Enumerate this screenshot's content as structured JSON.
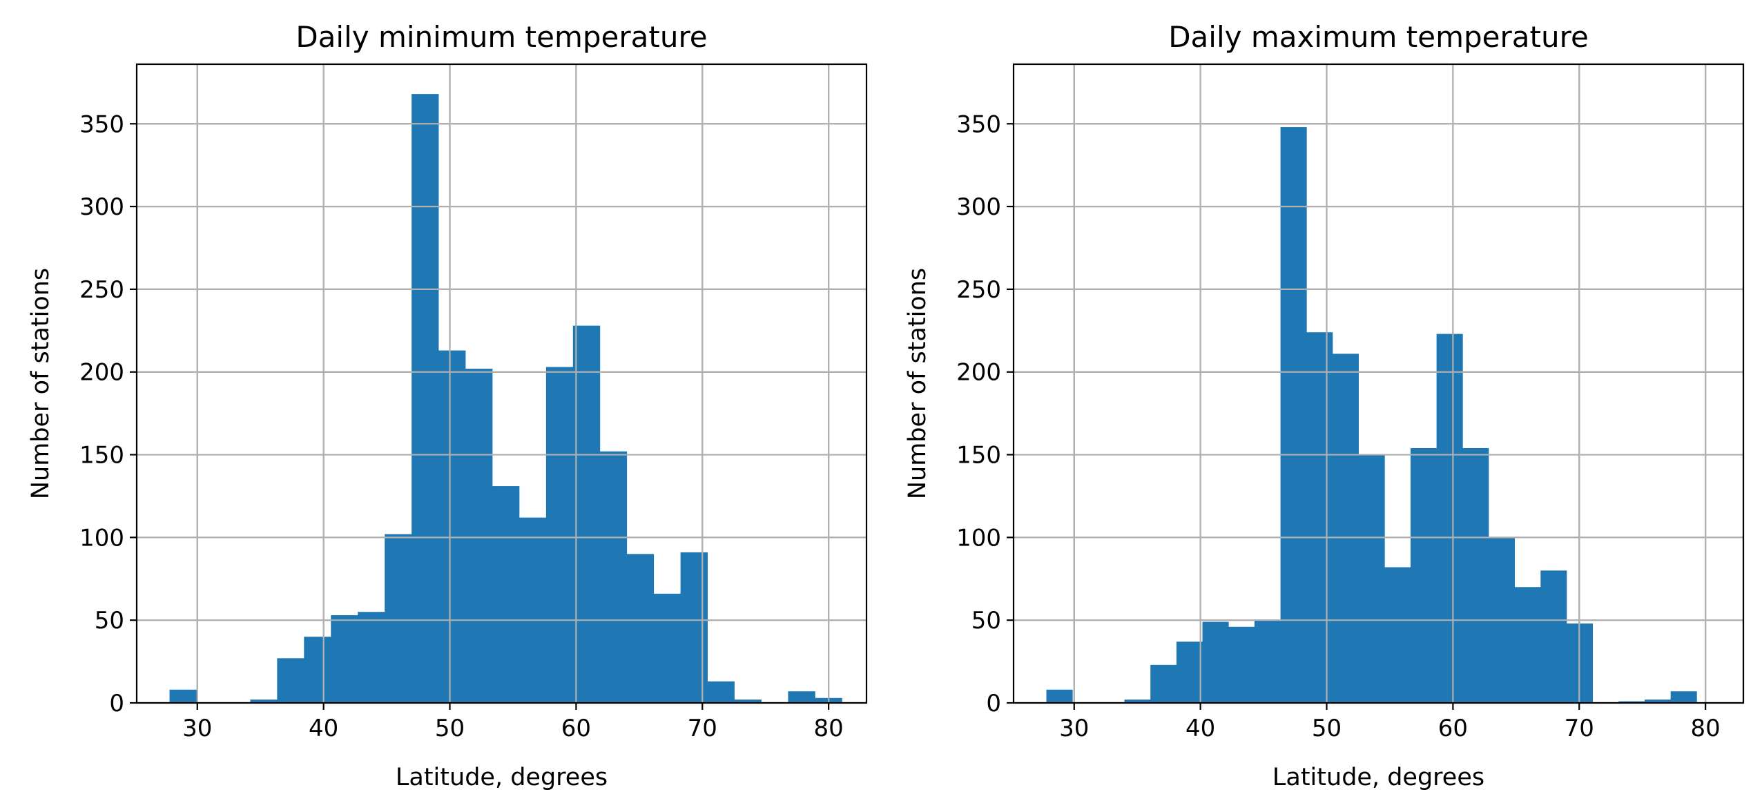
{
  "figure": {
    "background": "#ffffff"
  },
  "chart_data": [
    {
      "type": "bar",
      "histogram": true,
      "title": "Daily minimum temperature",
      "xlabel": "Latitude, degrees",
      "ylabel": "Number of stations",
      "xlim": [
        25.2,
        83.0
      ],
      "ylim": [
        0,
        386
      ],
      "xticks": [
        30,
        40,
        50,
        60,
        70,
        80
      ],
      "yticks": [
        0,
        50,
        100,
        150,
        200,
        250,
        300,
        350
      ],
      "grid": true,
      "bar_color": "#1f77b4",
      "bin_start": 27.8,
      "bin_width": 2.13,
      "counts": [
        8,
        0,
        0,
        2,
        27,
        40,
        53,
        55,
        102,
        368,
        213,
        202,
        131,
        112,
        203,
        228,
        152,
        90,
        66,
        91,
        13,
        2,
        0,
        7,
        3
      ]
    },
    {
      "type": "bar",
      "histogram": true,
      "title": "Daily maximum temperature",
      "xlabel": "Latitude, degrees",
      "ylabel": "Number of stations",
      "xlim": [
        25.2,
        83.0
      ],
      "ylim": [
        0,
        386
      ],
      "xticks": [
        30,
        40,
        50,
        60,
        70,
        80
      ],
      "yticks": [
        0,
        50,
        100,
        150,
        200,
        250,
        300,
        350
      ],
      "grid": true,
      "bar_color": "#1f77b4",
      "bin_start": 27.8,
      "bin_width": 2.06,
      "counts": [
        8,
        0,
        0,
        2,
        23,
        37,
        49,
        46,
        50,
        348,
        224,
        211,
        150,
        82,
        154,
        223,
        154,
        100,
        70,
        80,
        48,
        0,
        1,
        2,
        7
      ]
    }
  ]
}
